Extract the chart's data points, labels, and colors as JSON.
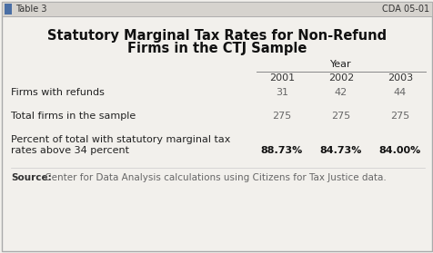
{
  "title_line1": "Statutory Marginal Tax Rates for Non-Refund",
  "title_line2": "Firms in the CTJ Sample",
  "header_label": "Year",
  "columns": [
    "2001",
    "2002",
    "2003"
  ],
  "rows": [
    {
      "label": "Firms with refunds",
      "values": [
        "31",
        "42",
        "44"
      ],
      "bold_values": false
    },
    {
      "label": "Total firms in the sample",
      "values": [
        "275",
        "275",
        "275"
      ],
      "bold_values": false
    },
    {
      "label_line1": "Percent of total with statutory marginal tax",
      "label_line2": "rates above 34 percent",
      "values": [
        "88.73%",
        "84.73%",
        "84.00%"
      ],
      "bold_values": true
    }
  ],
  "source_bold": "Source:",
  "source_text": " Center for Data Analysis calculations using Citizens for Tax Justice data.",
  "top_bar_left": "Table 3",
  "top_bar_right": "CDA 05-01",
  "bg_color": "#f2f0ec",
  "top_bar_color": "#d6d3ce",
  "border_color": "#aaaaaa",
  "icon_color": "#4a6fa5",
  "title_fontsize": 10.5,
  "body_fontsize": 8.0,
  "source_fontsize": 7.5,
  "header_fontsize": 8.0,
  "topbar_fontsize": 7.0
}
